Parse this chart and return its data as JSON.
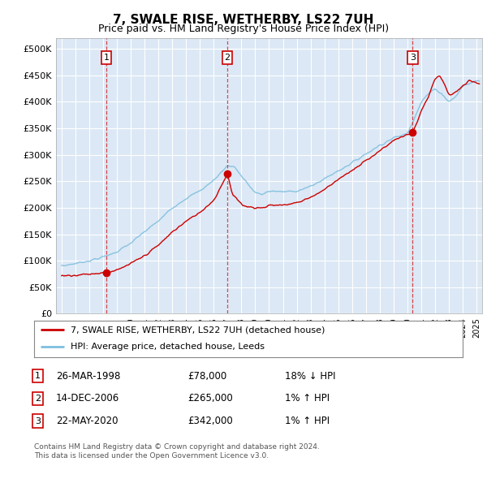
{
  "title": "7, SWALE RISE, WETHERBY, LS22 7UH",
  "subtitle": "Price paid vs. HM Land Registry's House Price Index (HPI)",
  "ylim": [
    0,
    520000
  ],
  "yticks": [
    0,
    50000,
    100000,
    150000,
    200000,
    250000,
    300000,
    350000,
    400000,
    450000,
    500000
  ],
  "ytick_labels": [
    "£0",
    "£50K",
    "£100K",
    "£150K",
    "£200K",
    "£250K",
    "£300K",
    "£350K",
    "£400K",
    "£450K",
    "£500K"
  ],
  "xlim_start": 1994.6,
  "xlim_end": 2025.4,
  "plot_bg_color": "#dce8f5",
  "grid_color": "#ffffff",
  "sale_dates": [
    1998.23,
    2006.97,
    2020.38
  ],
  "sale_prices": [
    78000,
    265000,
    342000
  ],
  "sale_labels": [
    "1",
    "2",
    "3"
  ],
  "legend_line1": "7, SWALE RISE, WETHERBY, LS22 7UH (detached house)",
  "legend_line2": "HPI: Average price, detached house, Leeds",
  "table_rows": [
    [
      "1",
      "26-MAR-1998",
      "£78,000",
      "18% ↓ HPI"
    ],
    [
      "2",
      "14-DEC-2006",
      "£265,000",
      "1% ↑ HPI"
    ],
    [
      "3",
      "22-MAY-2020",
      "£342,000",
      "1% ↑ HPI"
    ]
  ],
  "footnote1": "Contains HM Land Registry data © Crown copyright and database right 2024.",
  "footnote2": "This data is licensed under the Open Government Licence v3.0.",
  "hpi_color": "#7fbfdf",
  "sale_line_color": "#cc0000",
  "marker_box_color": "#cc0000",
  "hpi_anchors_x": [
    1995,
    1996,
    1997,
    1998,
    1999,
    2000,
    2001,
    2002,
    2003,
    2004,
    2005,
    2006,
    2007,
    2007.5,
    2008,
    2009,
    2009.5,
    2010,
    2011,
    2012,
    2013,
    2014,
    2015,
    2016,
    2017,
    2018,
    2019,
    2020,
    2020.5,
    2021,
    2021.5,
    2022,
    2022.5,
    2023,
    2023.5,
    2024,
    2025
  ],
  "hpi_anchors_y": [
    90000,
    95000,
    100000,
    107000,
    117000,
    133000,
    155000,
    175000,
    200000,
    218000,
    232000,
    252000,
    280000,
    278000,
    260000,
    228000,
    225000,
    232000,
    230000,
    232000,
    240000,
    255000,
    270000,
    285000,
    302000,
    318000,
    332000,
    340000,
    370000,
    400000,
    415000,
    425000,
    415000,
    400000,
    410000,
    430000,
    440000
  ],
  "prop_anchors_x": [
    1995,
    1996,
    1997,
    1998.23,
    1999,
    2000,
    2001,
    2002,
    2003,
    2004,
    2005,
    2006,
    2006.97,
    2007.3,
    2007.6,
    2008,
    2009,
    2009.5,
    2010,
    2011,
    2012,
    2013,
    2014,
    2015,
    2016,
    2017,
    2018,
    2019,
    2020.38,
    2021,
    2021.5,
    2022,
    2022.3,
    2022.7,
    2023,
    2023.5,
    2024,
    2024.5,
    2025
  ],
  "prop_anchors_y": [
    72000,
    73000,
    75000,
    78000,
    82000,
    95000,
    110000,
    130000,
    155000,
    175000,
    192000,
    215000,
    265000,
    225000,
    218000,
    205000,
    200000,
    200000,
    205000,
    205000,
    210000,
    220000,
    235000,
    255000,
    270000,
    290000,
    308000,
    328000,
    342000,
    385000,
    410000,
    445000,
    450000,
    430000,
    410000,
    420000,
    430000,
    440000,
    435000
  ]
}
